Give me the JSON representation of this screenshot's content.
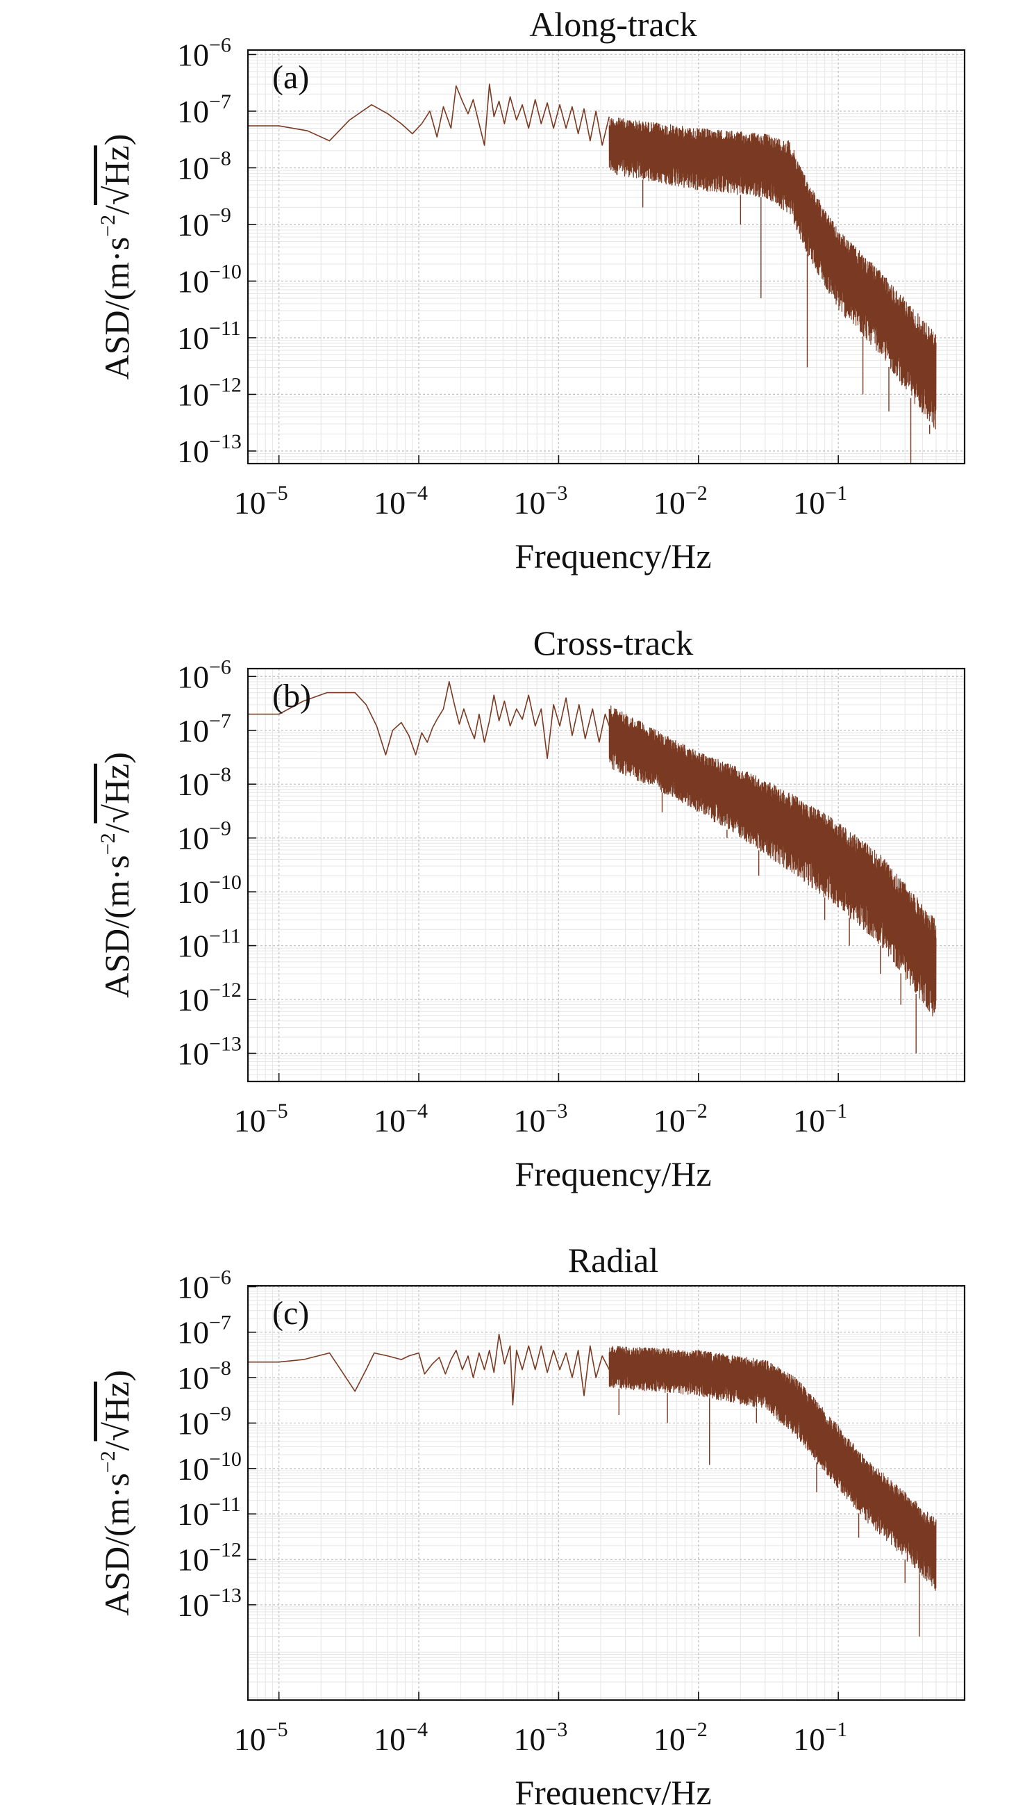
{
  "figure": {
    "background": "#ffffff",
    "line_color": "#7a3a22",
    "grid_major": "#c4c4c4",
    "grid_minor": "#e6e6e6"
  },
  "chart_data": [
    {
      "type": "line",
      "title": "Along-track",
      "panel_label": "(a)",
      "xlabel": "Frequency/Hz",
      "ylabel_parts": [
        "ASD/(m·s",
        "−2",
        "/",
        "Hz",
        ")"
      ],
      "xscale": "log",
      "yscale": "log",
      "xlim": [
        6e-06,
        0.8
      ],
      "ylim": [
        6e-14,
        1.2e-06
      ],
      "x_ticks": [
        {
          "base": "10",
          "exp": "−5"
        },
        {
          "base": "10",
          "exp": "−4"
        },
        {
          "base": "10",
          "exp": "−3"
        },
        {
          "base": "10",
          "exp": "−2"
        },
        {
          "base": "10",
          "exp": "−1"
        }
      ],
      "x_tick_values": [
        1e-05,
        0.0001,
        0.001,
        0.01,
        0.1
      ],
      "y_ticks": [
        {
          "base": "10",
          "exp": "−6"
        },
        {
          "base": "10",
          "exp": "−7"
        },
        {
          "base": "10",
          "exp": "−8"
        },
        {
          "base": "10",
          "exp": "−9"
        },
        {
          "base": "10",
          "exp": "−10"
        },
        {
          "base": "10",
          "exp": "−11"
        },
        {
          "base": "10",
          "exp": "−12"
        },
        {
          "base": "10",
          "exp": "−13"
        }
      ],
      "y_tick_values": [
        1e-06,
        1e-07,
        1e-08,
        1e-09,
        1e-10,
        1e-11,
        1e-12,
        1e-13
      ],
      "grid": true,
      "series": [
        {
          "name": "ASD",
          "color": "#7a3a22",
          "envelope": {
            "freq": [
              0.0023,
              0.01,
              0.03,
              0.045,
              0.06,
              0.1,
              0.2,
              0.5
            ],
            "upper": [
              8e-08,
              5e-08,
              4e-08,
              3e-08,
              6e-09,
              8e-10,
              1.5e-10,
              1.2e-11
            ],
            "lower": [
              8e-09,
              4e-09,
              3e-09,
              1.5e-09,
              3e-10,
              3e-11,
              5e-12,
              2e-13
            ]
          },
          "low_freq_points": [
            [
              6e-06,
              5.5e-08
            ],
            [
              1e-05,
              5.5e-08
            ],
            [
              1.6e-05,
              4.5e-08
            ],
            [
              2.3e-05,
              3e-08
            ],
            [
              3.2e-05,
              7e-08
            ],
            [
              4.6e-05,
              1.3e-07
            ],
            [
              6e-05,
              9e-08
            ],
            [
              7.5e-05,
              6e-08
            ],
            [
              9e-05,
              4e-08
            ],
            [
              0.000105,
              6e-08
            ],
            [
              0.00012,
              1e-07
            ],
            [
              0.000135,
              3.5e-08
            ],
            [
              0.00015,
              1.2e-07
            ],
            [
              0.00017,
              5e-08
            ],
            [
              0.000185,
              2.8e-07
            ],
            [
              0.000205,
              1.5e-07
            ],
            [
              0.000225,
              9e-08
            ],
            [
              0.000245,
              1.6e-07
            ],
            [
              0.00027,
              6e-08
            ],
            [
              0.000295,
              2.5e-08
            ],
            [
              0.00032,
              3e-07
            ],
            [
              0.000345,
              8e-08
            ],
            [
              0.000375,
              1.5e-07
            ],
            [
              0.00041,
              6e-08
            ],
            [
              0.00045,
              1.8e-07
            ],
            [
              0.0005,
              7e-08
            ],
            [
              0.00055,
              1.3e-07
            ],
            [
              0.00061,
              5e-08
            ],
            [
              0.00068,
              1.6e-07
            ],
            [
              0.00075,
              6e-08
            ],
            [
              0.00083,
              1.4e-07
            ],
            [
              0.00092,
              5e-08
            ],
            [
              0.00102,
              1.3e-07
            ],
            [
              0.00113,
              5e-08
            ],
            [
              0.00125,
              1.2e-07
            ],
            [
              0.00138,
              4e-08
            ],
            [
              0.00152,
              1.1e-07
            ],
            [
              0.00168,
              3e-08
            ],
            [
              0.00185,
              1e-07
            ],
            [
              0.00205,
              2.5e-08
            ],
            [
              0.0023,
              8e-08
            ]
          ],
          "spikes": [
            [
              0.004,
              2e-09
            ],
            [
              0.02,
              1e-09
            ],
            [
              0.028,
              5e-11
            ],
            [
              0.06,
              3e-12
            ],
            [
              0.15,
              1e-12
            ],
            [
              0.23,
              5e-13
            ],
            [
              0.33,
              4e-14
            ],
            [
              0.45,
              2e-13
            ]
          ]
        }
      ]
    },
    {
      "type": "line",
      "title": "Cross-track",
      "panel_label": "(b)",
      "xlabel": "Frequency/Hz",
      "ylabel_parts": [
        "ASD/(m·s",
        "−2",
        "/",
        "Hz",
        ")"
      ],
      "xscale": "log",
      "yscale": "log",
      "xlim": [
        6e-06,
        0.8
      ],
      "ylim": [
        3e-14,
        1.4e-06
      ],
      "x_ticks": [
        {
          "base": "10",
          "exp": "−5"
        },
        {
          "base": "10",
          "exp": "−4"
        },
        {
          "base": "10",
          "exp": "−3"
        },
        {
          "base": "10",
          "exp": "−2"
        },
        {
          "base": "10",
          "exp": "−1"
        }
      ],
      "x_tick_values": [
        1e-05,
        0.0001,
        0.001,
        0.01,
        0.1
      ],
      "y_ticks": [
        {
          "base": "10",
          "exp": "−6"
        },
        {
          "base": "10",
          "exp": "−7"
        },
        {
          "base": "10",
          "exp": "−8"
        },
        {
          "base": "10",
          "exp": "−9"
        },
        {
          "base": "10",
          "exp": "−10"
        },
        {
          "base": "10",
          "exp": "−11"
        },
        {
          "base": "10",
          "exp": "−12"
        },
        {
          "base": "10",
          "exp": "−13"
        }
      ],
      "y_tick_values": [
        1e-06,
        1e-07,
        1e-08,
        1e-09,
        1e-10,
        1e-11,
        1e-12,
        1e-13
      ],
      "grid": true,
      "series": [
        {
          "name": "ASD",
          "color": "#7a3a22",
          "envelope": {
            "freq": [
              0.0023,
              0.005,
              0.01,
              0.02,
              0.05,
              0.1,
              0.2,
              0.5
            ],
            "upper": [
              3e-07,
              1e-07,
              4e-08,
              2e-08,
              6e-09,
              2e-09,
              5e-10,
              3e-11
            ],
            "lower": [
              2e-08,
              8e-09,
              3e-09,
              1e-09,
              2e-10,
              5e-11,
              1e-11,
              4e-13
            ]
          },
          "low_freq_points": [
            [
              6e-06,
              2e-07
            ],
            [
              1e-05,
              2e-07
            ],
            [
              1.5e-05,
              3.5e-07
            ],
            [
              2.2e-05,
              5e-07
            ],
            [
              3.5e-05,
              5e-07
            ],
            [
              4.2e-05,
              3e-07
            ],
            [
              5e-05,
              1.2e-07
            ],
            [
              5.8e-05,
              3.5e-08
            ],
            [
              6.5e-05,
              1e-07
            ],
            [
              7.5e-05,
              1.4e-07
            ],
            [
              8.5e-05,
              8e-08
            ],
            [
              9.5e-05,
              3.5e-08
            ],
            [
              0.000105,
              9e-08
            ],
            [
              0.000115,
              6e-08
            ],
            [
              0.000125,
              1.1e-07
            ],
            [
              0.000135,
              1.6e-07
            ],
            [
              0.00015,
              2.5e-07
            ],
            [
              0.000165,
              8e-07
            ],
            [
              0.00018,
              3e-07
            ],
            [
              0.000195,
              1.3e-07
            ],
            [
              0.00021,
              2.5e-07
            ],
            [
              0.00023,
              1.2e-07
            ],
            [
              0.00025,
              7e-08
            ],
            [
              0.00027,
              2e-07
            ],
            [
              0.000295,
              6e-08
            ],
            [
              0.00032,
              1.5e-07
            ],
            [
              0.000345,
              4.5e-07
            ],
            [
              0.000375,
              1.5e-07
            ],
            [
              0.00041,
              3.5e-07
            ],
            [
              0.00045,
              1.2e-07
            ],
            [
              0.0005,
              2.5e-07
            ],
            [
              0.00055,
              1.6e-07
            ],
            [
              0.00061,
              4.5e-07
            ],
            [
              0.00068,
              1.2e-07
            ],
            [
              0.00075,
              2.5e-07
            ],
            [
              0.00083,
              3e-08
            ],
            [
              0.00092,
              3e-07
            ],
            [
              0.00102,
              1.2e-07
            ],
            [
              0.00113,
              4e-07
            ],
            [
              0.00125,
              8e-08
            ],
            [
              0.0014,
              3e-07
            ],
            [
              0.00155,
              7e-08
            ],
            [
              0.00175,
              2.5e-07
            ],
            [
              0.00195,
              6e-08
            ],
            [
              0.00215,
              2e-07
            ],
            [
              0.0023,
              1.2e-07
            ]
          ],
          "spikes": [
            [
              0.0055,
              3e-09
            ],
            [
              0.016,
              1e-09
            ],
            [
              0.027,
              2e-10
            ],
            [
              0.08,
              3e-11
            ],
            [
              0.12,
              1e-11
            ],
            [
              0.2,
              3e-12
            ],
            [
              0.28,
              8e-13
            ],
            [
              0.36,
              1e-13
            ]
          ]
        }
      ]
    },
    {
      "type": "line",
      "title": "Radial",
      "panel_label": "(c)",
      "xlabel": "Frequency/Hz",
      "ylabel_parts": [
        "ASD/(m·s",
        "−2",
        "/",
        "Hz",
        ")"
      ],
      "xscale": "log",
      "yscale": "log",
      "xlim": [
        6e-06,
        0.8
      ],
      "ylim": [
        8e-16,
        1.05e-06
      ],
      "x_ticks": [
        {
          "base": "10",
          "exp": "−5"
        },
        {
          "base": "10",
          "exp": "−4"
        },
        {
          "base": "10",
          "exp": "−3"
        },
        {
          "base": "10",
          "exp": "−2"
        },
        {
          "base": "10",
          "exp": "−1"
        }
      ],
      "x_tick_values": [
        1e-05,
        0.0001,
        0.001,
        0.01,
        0.1
      ],
      "y_ticks": [
        {
          "base": "10",
          "exp": "−6"
        },
        {
          "base": "10",
          "exp": "−7"
        },
        {
          "base": "10",
          "exp": "−8"
        },
        {
          "base": "10",
          "exp": "−9"
        },
        {
          "base": "10",
          "exp": "−10"
        },
        {
          "base": "10",
          "exp": "−11"
        },
        {
          "base": "10",
          "exp": "−12"
        },
        {
          "base": "10",
          "exp": "−13"
        }
      ],
      "y_tick_values": [
        1e-06,
        1e-07,
        1e-08,
        1e-09,
        1e-10,
        1e-11,
        1e-12,
        1e-13
      ],
      "grid": true,
      "series": [
        {
          "name": "ASD",
          "color": "#7a3a22",
          "envelope": {
            "freq": [
              0.0023,
              0.01,
              0.03,
              0.05,
              0.08,
              0.15,
              0.3,
              0.5
            ],
            "upper": [
              5e-08,
              4e-08,
              2.5e-08,
              1e-08,
              2e-09,
              2e-10,
              3e-11,
              8e-12
            ],
            "lower": [
              6e-09,
              4e-09,
              2e-09,
              5e-10,
              8e-11,
              8e-12,
              1e-12,
              2e-13
            ]
          },
          "low_freq_points": [
            [
              6e-06,
              2.2e-08
            ],
            [
              1e-05,
              2.2e-08
            ],
            [
              1.5e-05,
              2.5e-08
            ],
            [
              2.3e-05,
              3.5e-08
            ],
            [
              2.9e-05,
              1.2e-08
            ],
            [
              3.5e-05,
              5e-09
            ],
            [
              4.2e-05,
              1.5e-08
            ],
            [
              4.8e-05,
              3.5e-08
            ],
            [
              6e-05,
              3e-08
            ],
            [
              7.5e-05,
              2.5e-08
            ],
            [
              8.5e-05,
              3e-08
            ],
            [
              0.0001,
              3.5e-08
            ],
            [
              0.00011,
              1.2e-08
            ],
            [
              0.000125,
              2e-08
            ],
            [
              0.00014,
              2.8e-08
            ],
            [
              0.000155,
              1.2e-08
            ],
            [
              0.00017,
              2.5e-08
            ],
            [
              0.000185,
              4e-08
            ],
            [
              0.000205,
              1.5e-08
            ],
            [
              0.000225,
              3e-08
            ],
            [
              0.000245,
              1e-08
            ],
            [
              0.00027,
              3.5e-08
            ],
            [
              0.000295,
              1.5e-08
            ],
            [
              0.00032,
              4e-08
            ],
            [
              0.000345,
              1.3e-08
            ],
            [
              0.000375,
              9e-08
            ],
            [
              0.00041,
              2e-08
            ],
            [
              0.00045,
              5e-08
            ],
            [
              0.00047,
              2.5e-09
            ],
            [
              0.0005,
              4e-08
            ],
            [
              0.00055,
              1.5e-08
            ],
            [
              0.00061,
              5e-08
            ],
            [
              0.00068,
              1.5e-08
            ],
            [
              0.00075,
              5e-08
            ],
            [
              0.00083,
              1.3e-08
            ],
            [
              0.00092,
              4e-08
            ],
            [
              0.00102,
              1.5e-08
            ],
            [
              0.00113,
              3.5e-08
            ],
            [
              0.00125,
              1e-08
            ],
            [
              0.00138,
              4e-08
            ],
            [
              0.00152,
              4e-09
            ],
            [
              0.00168,
              5e-08
            ],
            [
              0.00185,
              1e-08
            ],
            [
              0.00205,
              3e-08
            ],
            [
              0.0023,
              1.5e-08
            ]
          ],
          "spikes": [
            [
              0.0027,
              1.5e-09
            ],
            [
              0.006,
              1e-09
            ],
            [
              0.012,
              1.2e-10
            ],
            [
              0.026,
              1e-09
            ],
            [
              0.07,
              3e-11
            ],
            [
              0.14,
              3e-12
            ],
            [
              0.3,
              3e-13
            ],
            [
              0.38,
              2e-14
            ]
          ]
        }
      ]
    }
  ]
}
